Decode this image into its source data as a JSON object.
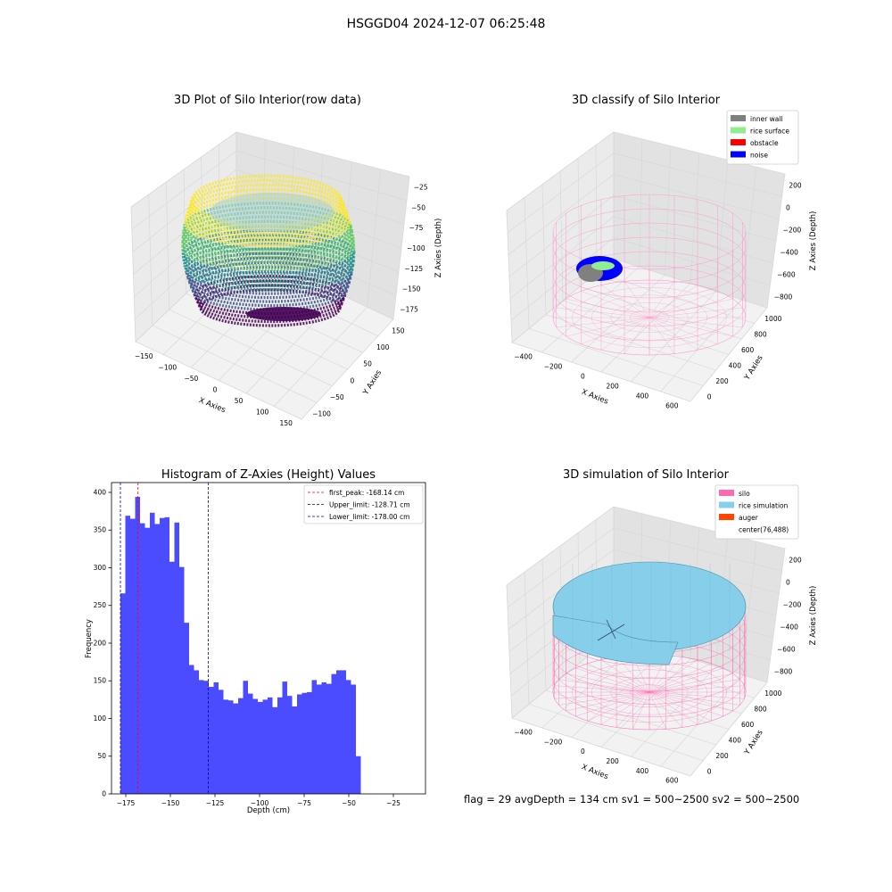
{
  "figure": {
    "suptitle": "HSGGD04 2024-12-07 06:25:48",
    "footer": "flag = 29  avgDepth = 134 cm  sv1 = 500~2500  sv2 = 500~2500"
  },
  "panels": {
    "raw": {
      "title": "3D Plot of Silo Interior(row data)",
      "xlabel": "X Axies",
      "ylabel": "Y Axies",
      "zlabel": "Z Axies (Depth)",
      "xticks": [
        "−150",
        "−100",
        "−50",
        "0",
        "50",
        "100",
        "150"
      ],
      "yticks": [
        "−100",
        "−50",
        "0",
        "50",
        "100",
        "150"
      ],
      "zticks": [
        "−25",
        "−50",
        "−75",
        "−100",
        "−125",
        "−150",
        "−175"
      ]
    },
    "classify": {
      "title": "3D classify of Silo Interior",
      "xlabel": "X Axies",
      "ylabel": "Y Axies",
      "zlabel": "Z Axies (Depth)",
      "xticks": [
        "−400",
        "−200",
        "0",
        "200",
        "400",
        "600"
      ],
      "yticks": [
        "0",
        "200",
        "400",
        "600",
        "800",
        "1000"
      ],
      "zticks": [
        "200",
        "0",
        "−200",
        "−400",
        "−600",
        "−800"
      ],
      "legend": [
        {
          "label": "inner wall",
          "color": "#808080"
        },
        {
          "label": "rice surface",
          "color": "#90ee90"
        },
        {
          "label": "obstacle",
          "color": "#ff0000"
        },
        {
          "label": "noise",
          "color": "#0000ff"
        }
      ]
    },
    "simulation": {
      "title": "3D simulation of Silo Interior",
      "xlabel": "X Axies",
      "ylabel": "Y Axies",
      "zlabel": "Z Axies (Depth)",
      "xticks": [
        "−400",
        "−200",
        "0",
        "200",
        "400",
        "600"
      ],
      "yticks": [
        "0",
        "200",
        "400",
        "600",
        "800",
        "1000"
      ],
      "zticks": [
        "200",
        "0",
        "−200",
        "−400",
        "−600",
        "−800"
      ],
      "legend": [
        {
          "label": "silo",
          "color": "#ff69b4"
        },
        {
          "label": "rice simulation",
          "color": "#87ceeb"
        },
        {
          "label": "auger",
          "color": "#ff4500"
        },
        {
          "label": "center(76,488)",
          "color": ""
        }
      ]
    }
  },
  "chart_data": {
    "type": "bar",
    "title": "Histogram of Z-Axies (Height) Values",
    "xlabel": "Depth (cm)",
    "ylabel": "Frequency",
    "xlim": [
      -183,
      -7
    ],
    "ylim": [
      0,
      413
    ],
    "xticks": [
      -175,
      -150,
      -125,
      -100,
      -75,
      -50,
      -25
    ],
    "yticks": [
      0,
      50,
      100,
      150,
      200,
      250,
      300,
      350,
      400
    ],
    "bar_color": "#4b4bff",
    "bin_start": -178.0,
    "bin_width": 2.75,
    "values": [
      266,
      369,
      365,
      394,
      359,
      353,
      373,
      358,
      366,
      367,
      308,
      360,
      301,
      227,
      171,
      164,
      151,
      150,
      142,
      148,
      138,
      125,
      124,
      120,
      127,
      150,
      133,
      126,
      122,
      125,
      128,
      115,
      128,
      149,
      130,
      116,
      132,
      134,
      135,
      151,
      145,
      148,
      146,
      159,
      164,
      164,
      151,
      145,
      50
    ],
    "vlines": [
      {
        "x": -168.14,
        "color": "#ff0000",
        "label": "first_peak: -168.14 cm"
      },
      {
        "x": -128.71,
        "color": "#0000cc",
        "label": "Upper_limit: -128.71 cm"
      },
      {
        "x": -178.0,
        "color": "#0000cc",
        "label": "Lower_limit: -178.00 cm"
      }
    ]
  }
}
